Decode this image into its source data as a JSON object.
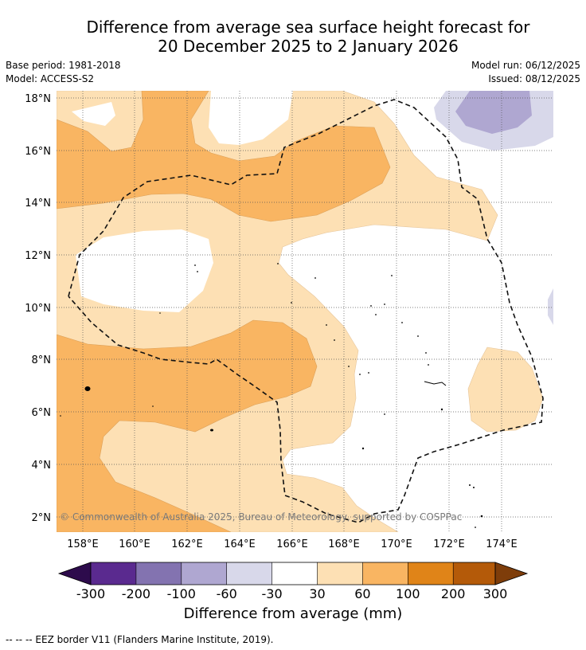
{
  "title_line1": "Difference from average sea surface height forecast for",
  "title_line2": "20 December 2025 to 2 January 2026",
  "meta": {
    "base_period": "Base period: 1981-2018",
    "model": "Model: ACCESS-S2",
    "model_run": "Model run: 06/12/2025",
    "issued": "Issued: 08/12/2025"
  },
  "map": {
    "lat_labels": [
      "18°N",
      "16°N",
      "14°N",
      "12°N",
      "10°N",
      "8°N",
      "6°N",
      "4°N",
      "2°N"
    ],
    "lon_labels": [
      "158°E",
      "160°E",
      "162°E",
      "164°E",
      "166°E",
      "168°E",
      "170°E",
      "172°E",
      "174°E"
    ],
    "copyright": "© Commonwealth of Australia 2025, Bureau of Meteorology, supported by COSPPac"
  },
  "colorbar": {
    "labels": [
      "-300",
      "-200",
      "-100",
      "-60",
      "-30",
      "30",
      "60",
      "100",
      "200",
      "300"
    ],
    "colors": [
      "#5a2a8f",
      "#8373b0",
      "#afa7d1",
      "#d8d8ea",
      "#ffffff",
      "#fde0b4",
      "#f9b562",
      "#e08418",
      "#b45a09"
    ],
    "under_color": "#2d0b4c",
    "over_color": "#7e3d0a",
    "title": "Difference from average (mm)"
  },
  "footer": "--  --  -- EEZ border V11 (Flanders Marine Institute, 2019)."
}
